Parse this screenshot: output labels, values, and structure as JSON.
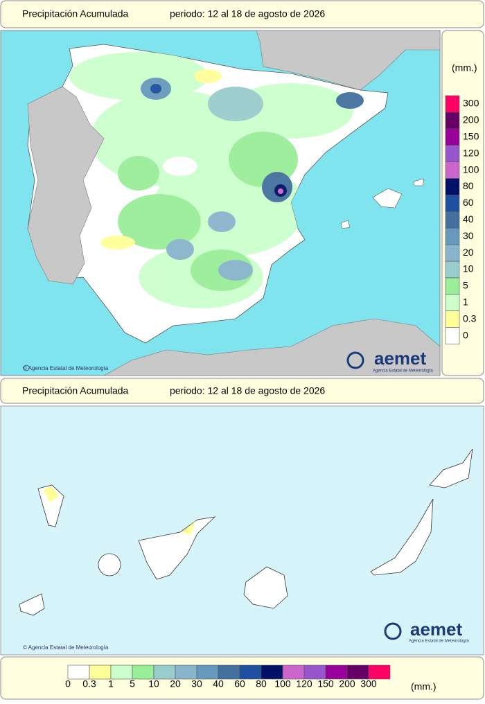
{
  "header": {
    "title": "Precipitación Acumulada",
    "period": "periodo: 12 al 18 de agosto de 2026"
  },
  "peninsula_map": {
    "credit": "© Agencia Estatal de Meteorología",
    "logo": {
      "name": "aemet",
      "subtitle": "Agencia Estatal de Meteorología"
    }
  },
  "side_legend": {
    "unit": "(mm.)"
  },
  "canarias_header": {
    "title": "Precipitación Acumulada",
    "period": "periodo: 12 al 18 de agosto de 2026"
  },
  "canarias_map": {
    "credit": "© Agencia Estatal de Meteorología",
    "logo": {
      "name": "aemet",
      "subtitle": "Agencia Estatal de Meteorología"
    }
  },
  "bottom_legend": {
    "unit": "(mm.)"
  },
  "scale": [
    {
      "label": "0",
      "color": "#ffffff"
    },
    {
      "label": "0.3",
      "color": "#ffff99"
    },
    {
      "label": "1",
      "color": "#ccffcc"
    },
    {
      "label": "5",
      "color": "#99ee99"
    },
    {
      "label": "10",
      "color": "#99cccc"
    },
    {
      "label": "20",
      "color": "#88b4cc"
    },
    {
      "label": "30",
      "color": "#6699bb"
    },
    {
      "label": "40",
      "color": "#44709f"
    },
    {
      "label": "60",
      "color": "#1f4fa0"
    },
    {
      "label": "80",
      "color": "#001166"
    },
    {
      "label": "100",
      "color": "#cc66cc"
    },
    {
      "label": "120",
      "color": "#9955cc"
    },
    {
      "label": "150",
      "color": "#990099"
    },
    {
      "label": "200",
      "color": "#660066"
    },
    {
      "label": "300",
      "color": "#ff0066"
    }
  ]
}
